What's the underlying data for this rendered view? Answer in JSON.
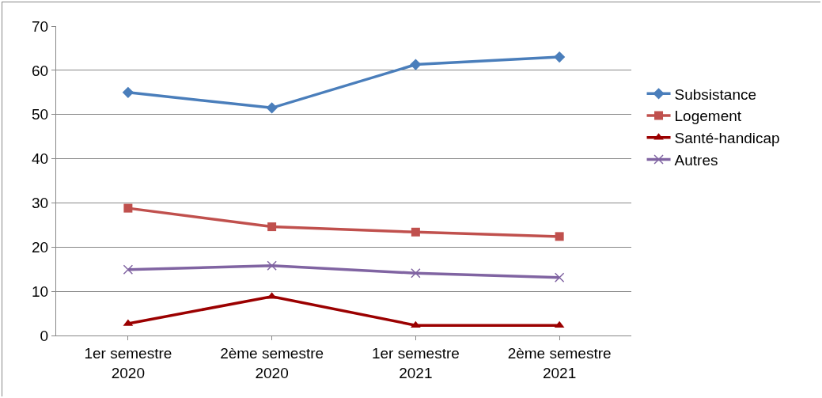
{
  "chart_data": {
    "type": "line",
    "categories": [
      "1er semestre 2020",
      "2ème semestre 2020",
      "1er semestre 2021",
      "2ème semestre 2021"
    ],
    "series": [
      {
        "name": "Subsistance",
        "color": "#4a7ebb",
        "marker": "diamond",
        "values": [
          55.0,
          51.5,
          61.3,
          63.0
        ]
      },
      {
        "name": "Logement",
        "color": "#c0504d",
        "marker": "square",
        "values": [
          28.8,
          24.6,
          23.4,
          22.4
        ]
      },
      {
        "name": "Santé-handicap",
        "color": "#9b0000",
        "marker": "triangle",
        "values": [
          2.7,
          8.8,
          2.3,
          2.3
        ]
      },
      {
        "name": "Autres",
        "color": "#8064a2",
        "marker": "cross",
        "values": [
          14.9,
          15.8,
          14.1,
          13.1
        ]
      }
    ],
    "ylim": [
      0,
      70
    ],
    "yticks": [
      0,
      10,
      20,
      30,
      40,
      50,
      60,
      70
    ],
    "grid": "y",
    "legend": "right",
    "line_style": "solid"
  }
}
